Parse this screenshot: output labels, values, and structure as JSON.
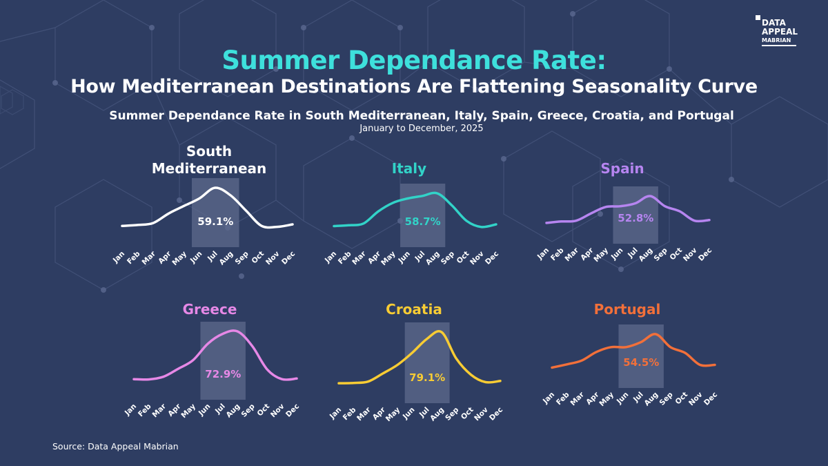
{
  "header": {
    "title_line1": "Summer Dependance Rate:",
    "title_line2": "How Mediterranean Destinations Are Flattening Seasonality Curve",
    "subtitle": "Summer Dependance Rate in South Mediterranean, Italy, Spain, Greece, Croatia, and Portugal",
    "period": "January to December, 2025"
  },
  "logo": {
    "line1": "DATA",
    "line2": "APPEAL",
    "line3": "MABRIAN"
  },
  "source": "Source: Data Appeal Mabrian",
  "colors": {
    "background": "#2e3d62",
    "title_accent": "#3ee0dc",
    "highlight_band": "#5d6a8c"
  },
  "chart_data": [
    {
      "type": "line",
      "title": "South Mediterranean",
      "color": "#ffffff",
      "summer_rate_label": "59.1%",
      "categories": [
        "Jan",
        "Feb",
        "Mar",
        "Apr",
        "May",
        "Jun",
        "Jul",
        "Aug",
        "Sep",
        "Oct",
        "Nov",
        "Dec"
      ],
      "highlighted_months": [
        "Jun",
        "Jul",
        "Aug",
        "Sep"
      ],
      "values": [
        1.0,
        1.5,
        2.5,
        7.5,
        11.5,
        15.5,
        21.0,
        17.0,
        9.0,
        1.0,
        0.5,
        1.8
      ]
    },
    {
      "type": "line",
      "title": "Italy",
      "color": "#32d3c8",
      "summer_rate_label": "58.7%",
      "categories": [
        "Jan",
        "Feb",
        "Mar",
        "Apr",
        "May",
        "Jun",
        "Jul",
        "Aug",
        "Sep",
        "Oct",
        "Nov",
        "Dec"
      ],
      "highlighted_months": [
        "Jun",
        "Jul",
        "Aug",
        "Sep"
      ],
      "values": [
        1.0,
        1.5,
        2.5,
        9.5,
        14.5,
        17.0,
        18.5,
        20.0,
        13.0,
        4.0,
        0.5,
        2.0
      ]
    },
    {
      "type": "line",
      "title": "Spain",
      "color": "#b685f0",
      "summer_rate_label": "52.8%",
      "categories": [
        "Jan",
        "Feb",
        "Mar",
        "Apr",
        "May",
        "Jun",
        "Jul",
        "Aug",
        "Sep",
        "Oct",
        "Nov",
        "Dec"
      ],
      "highlighted_months": [
        "Jun",
        "Jul",
        "Aug",
        "Sep"
      ],
      "values": [
        1.0,
        2.0,
        2.5,
        7.5,
        12.0,
        12.5,
        14.5,
        19.5,
        12.5,
        9.0,
        2.5,
        3.0
      ]
    },
    {
      "type": "line",
      "title": "Greece",
      "color": "#e688e6",
      "summer_rate_label": "72.9%",
      "categories": [
        "Jan",
        "Feb",
        "Mar",
        "Apr",
        "May",
        "Jun",
        "Jul",
        "Aug",
        "Sep",
        "Oct",
        "Nov",
        "Dec"
      ],
      "highlighted_months": [
        "Jun",
        "Jul",
        "Aug",
        "Sep"
      ],
      "values": [
        1.0,
        0.8,
        3.0,
        9.5,
        16.5,
        30.0,
        38.0,
        40.0,
        28.0,
        9.0,
        1.0,
        1.5
      ]
    },
    {
      "type": "line",
      "title": "Croatia",
      "color": "#f8cc34",
      "summer_rate_label": "79.1%",
      "categories": [
        "Jan",
        "Feb",
        "Mar",
        "Apr",
        "May",
        "Jun",
        "Jul",
        "Aug",
        "Sep",
        "Oct",
        "Nov",
        "Dec"
      ],
      "highlighted_months": [
        "Jun",
        "Jul",
        "Aug",
        "Sep"
      ],
      "values": [
        0.5,
        0.8,
        2.0,
        9.0,
        16.5,
        27.0,
        39.0,
        45.0,
        22.0,
        8.0,
        1.5,
        2.5
      ]
    },
    {
      "type": "line",
      "title": "Portugal",
      "color": "#f2703a",
      "summer_rate_label": "54.5%",
      "categories": [
        "Jan",
        "Feb",
        "Mar",
        "Apr",
        "May",
        "Jun",
        "Jul",
        "Aug",
        "Sep",
        "Oct",
        "Nov",
        "Dec"
      ],
      "highlighted_months": [
        "Jun",
        "Jul",
        "Aug",
        "Sep"
      ],
      "values": [
        1.0,
        4.0,
        7.5,
        15.5,
        20.0,
        20.0,
        24.5,
        32.0,
        20.0,
        14.5,
        3.5,
        3.5
      ]
    }
  ]
}
